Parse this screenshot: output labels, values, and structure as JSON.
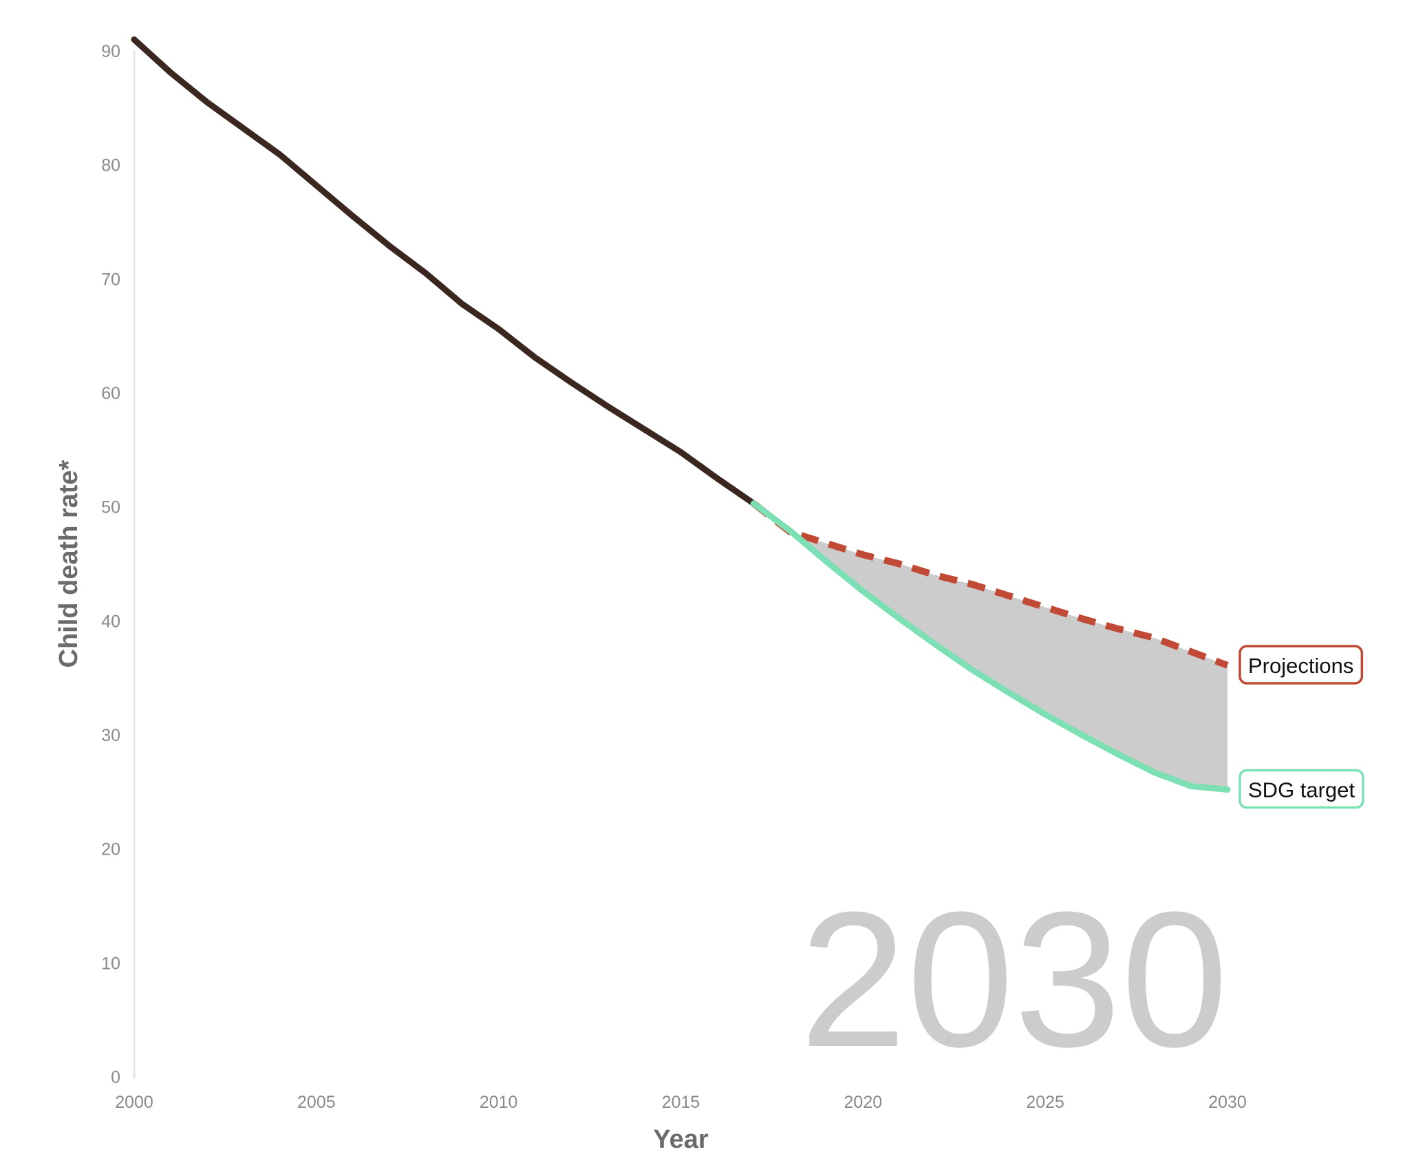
{
  "chart_data": {
    "type": "line",
    "xlabel": "Year",
    "ylabel": "Child death rate*",
    "xlim": [
      2000,
      2030
    ],
    "ylim": [
      0,
      90
    ],
    "x_ticks": [
      "2000",
      "2005",
      "2010",
      "2015",
      "2020",
      "2025",
      "2030"
    ],
    "y_ticks": [
      "0",
      "10",
      "20",
      "30",
      "40",
      "50",
      "60",
      "70",
      "80",
      "90"
    ],
    "year_overlay": "2030",
    "colors": {
      "historical": "#3b2620",
      "projections": "#c04a36",
      "sdg_target": "#7de0b4",
      "gap_fill": "#cccccc",
      "axis_line": "#e6e6e6"
    },
    "series": [
      {
        "key": "historical",
        "x": [
          2000,
          2001,
          2002,
          2003,
          2004,
          2005,
          2006,
          2007,
          2008,
          2009,
          2010,
          2011,
          2012,
          2013,
          2014,
          2015,
          2016,
          2017
        ],
        "y": [
          91,
          88.1,
          85.5,
          83.2,
          80.9,
          78.2,
          75.5,
          72.9,
          70.5,
          67.8,
          65.6,
          63.1,
          60.9,
          58.8,
          56.8,
          54.8,
          52.5,
          50.3
        ]
      },
      {
        "key": "projections",
        "name": "Projections",
        "x": [
          2017,
          2018,
          2019,
          2020,
          2021,
          2022,
          2023,
          2024,
          2025,
          2026,
          2027,
          2028,
          2029,
          2030
        ],
        "y": [
          50.3,
          47.8,
          46.8,
          45.8,
          45,
          44,
          43.2,
          42.2,
          41.2,
          40.2,
          39.3,
          38.5,
          37.3,
          36.1
        ]
      },
      {
        "key": "sdg_target",
        "name": "SDG target",
        "x": [
          2017,
          2018,
          2019,
          2020,
          2021,
          2022,
          2023,
          2024,
          2025,
          2026,
          2027,
          2028,
          2029,
          2030
        ],
        "y": [
          50.3,
          47.9,
          45.2,
          42.6,
          40.2,
          37.9,
          35.7,
          33.7,
          31.8,
          30,
          28.3,
          26.7,
          25.5,
          25.2
        ]
      }
    ],
    "gap_shaded": true,
    "grid": false,
    "legend": "inline labels at line ends"
  }
}
